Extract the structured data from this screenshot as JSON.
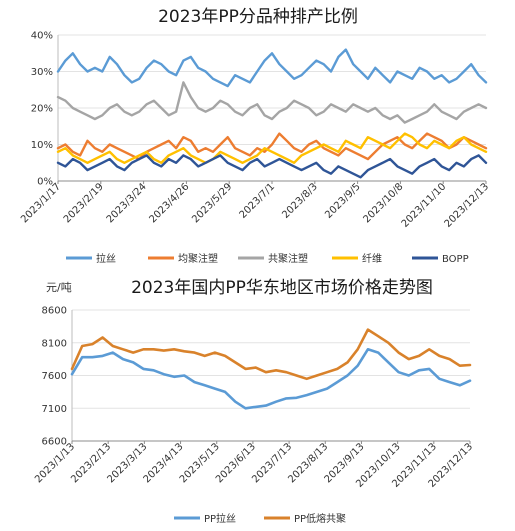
{
  "chart_data": [
    {
      "type": "line",
      "title": "2023年PP分品种排产比例",
      "xlabel": "",
      "ylabel": "",
      "ylim": [
        0,
        40
      ],
      "y_ticks": [
        "0%",
        "10%",
        "20%",
        "30%",
        "40%"
      ],
      "x_ticks": [
        "2023/1/17",
        "2023/2/19",
        "2023/3/24",
        "2023/4/26",
        "2023/5/29",
        "2023/7/1",
        "2023/8/3",
        "2023/9/5",
        "2023/10/8",
        "2023/11/10",
        "2023/12/13"
      ],
      "grid": true,
      "legend_position": "bottom",
      "series": [
        {
          "name": "拉丝",
          "color": "#5b9bd5",
          "values": [
            30,
            33,
            35,
            32,
            30,
            31,
            30,
            34,
            32,
            29,
            27,
            28,
            31,
            33,
            32,
            30,
            29,
            33,
            34,
            31,
            30,
            28,
            27,
            26,
            29,
            28,
            27,
            30,
            33,
            35,
            32,
            30,
            28,
            29,
            31,
            33,
            32,
            30,
            34,
            36,
            32,
            30,
            28,
            31,
            29,
            27,
            30,
            29,
            28,
            31,
            30,
            28,
            29,
            27,
            28,
            30,
            32,
            29,
            27
          ]
        },
        {
          "name": "均聚注塑",
          "color": "#ed7d31",
          "values": [
            9,
            10,
            8,
            7,
            11,
            9,
            8,
            10,
            9,
            8,
            7,
            6,
            8,
            9,
            10,
            11,
            9,
            12,
            11,
            8,
            9,
            8,
            10,
            12,
            9,
            8,
            7,
            9,
            8,
            10,
            13,
            11,
            9,
            8,
            10,
            11,
            9,
            8,
            7,
            9,
            8,
            7,
            6,
            8,
            10,
            11,
            12,
            10,
            9,
            11,
            13,
            12,
            11,
            9,
            10,
            12,
            11,
            10,
            9
          ]
        },
        {
          "name": "共聚注塑",
          "color": "#a5a5a5",
          "values": [
            23,
            22,
            20,
            19,
            18,
            17,
            18,
            20,
            21,
            19,
            18,
            19,
            21,
            22,
            20,
            18,
            19,
            27,
            23,
            20,
            19,
            20,
            22,
            21,
            19,
            18,
            20,
            21,
            18,
            17,
            19,
            20,
            22,
            21,
            20,
            18,
            19,
            21,
            20,
            19,
            21,
            20,
            19,
            20,
            18,
            17,
            18,
            16,
            17,
            18,
            19,
            21,
            19,
            18,
            17,
            19,
            20,
            21,
            20
          ]
        },
        {
          "name": "纤维",
          "color": "#ffc000",
          "values": [
            8,
            9,
            7,
            6,
            5,
            6,
            7,
            8,
            6,
            5,
            6,
            7,
            8,
            6,
            5,
            7,
            8,
            9,
            7,
            6,
            5,
            6,
            8,
            7,
            6,
            5,
            6,
            7,
            9,
            8,
            7,
            6,
            5,
            7,
            8,
            9,
            10,
            9,
            8,
            11,
            10,
            9,
            12,
            11,
            10,
            9,
            11,
            13,
            12,
            10,
            9,
            11,
            10,
            9,
            11,
            12,
            10,
            9,
            8
          ]
        },
        {
          "name": "BOPP",
          "color": "#2f5597",
          "values": [
            5,
            4,
            6,
            5,
            3,
            4,
            5,
            6,
            4,
            3,
            5,
            6,
            7,
            5,
            4,
            6,
            5,
            7,
            6,
            4,
            5,
            6,
            7,
            5,
            4,
            3,
            5,
            6,
            4,
            5,
            6,
            5,
            4,
            3,
            4,
            5,
            3,
            2,
            4,
            3,
            2,
            1,
            3,
            4,
            5,
            6,
            4,
            3,
            2,
            4,
            5,
            6,
            4,
            3,
            5,
            4,
            6,
            7,
            5
          ]
        }
      ]
    },
    {
      "type": "line",
      "title": "2023年国内PP华东地区市场价格走势图",
      "unit": "元/吨",
      "xlabel": "",
      "ylabel": "元/吨",
      "ylim": [
        6600,
        8600
      ],
      "y_ticks": [
        "6600",
        "7100",
        "7600",
        "8100",
        "8600"
      ],
      "x_ticks": [
        "2023/1/13",
        "2023/2/13",
        "2023/3/13",
        "2023/4/13",
        "2023/5/13",
        "2023/6/13",
        "2023/7/13",
        "2023/8/13",
        "2023/9/13",
        "2023/10/13",
        "2023/11/13",
        "2023/12/13"
      ],
      "grid": true,
      "legend_position": "bottom",
      "series": [
        {
          "name": "PP拉丝",
          "color": "#5b9bd5",
          "values": [
            7620,
            7880,
            7880,
            7900,
            7950,
            7850,
            7800,
            7700,
            7680,
            7620,
            7580,
            7600,
            7500,
            7450,
            7400,
            7350,
            7200,
            7100,
            7120,
            7140,
            7200,
            7250,
            7260,
            7300,
            7350,
            7400,
            7500,
            7600,
            7750,
            8000,
            7950,
            7800,
            7650,
            7600,
            7680,
            7700,
            7550,
            7500,
            7450,
            7520
          ]
        },
        {
          "name": "PP低熔共聚",
          "color": "#d9822b",
          "values": [
            7700,
            8050,
            8080,
            8180,
            8050,
            8000,
            7950,
            8000,
            8000,
            7980,
            8000,
            7970,
            7950,
            7900,
            7950,
            7900,
            7800,
            7700,
            7720,
            7650,
            7680,
            7650,
            7600,
            7550,
            7600,
            7650,
            7700,
            7800,
            8000,
            8300,
            8200,
            8100,
            7950,
            7850,
            7900,
            8000,
            7900,
            7850,
            7750,
            7760
          ]
        }
      ]
    }
  ]
}
